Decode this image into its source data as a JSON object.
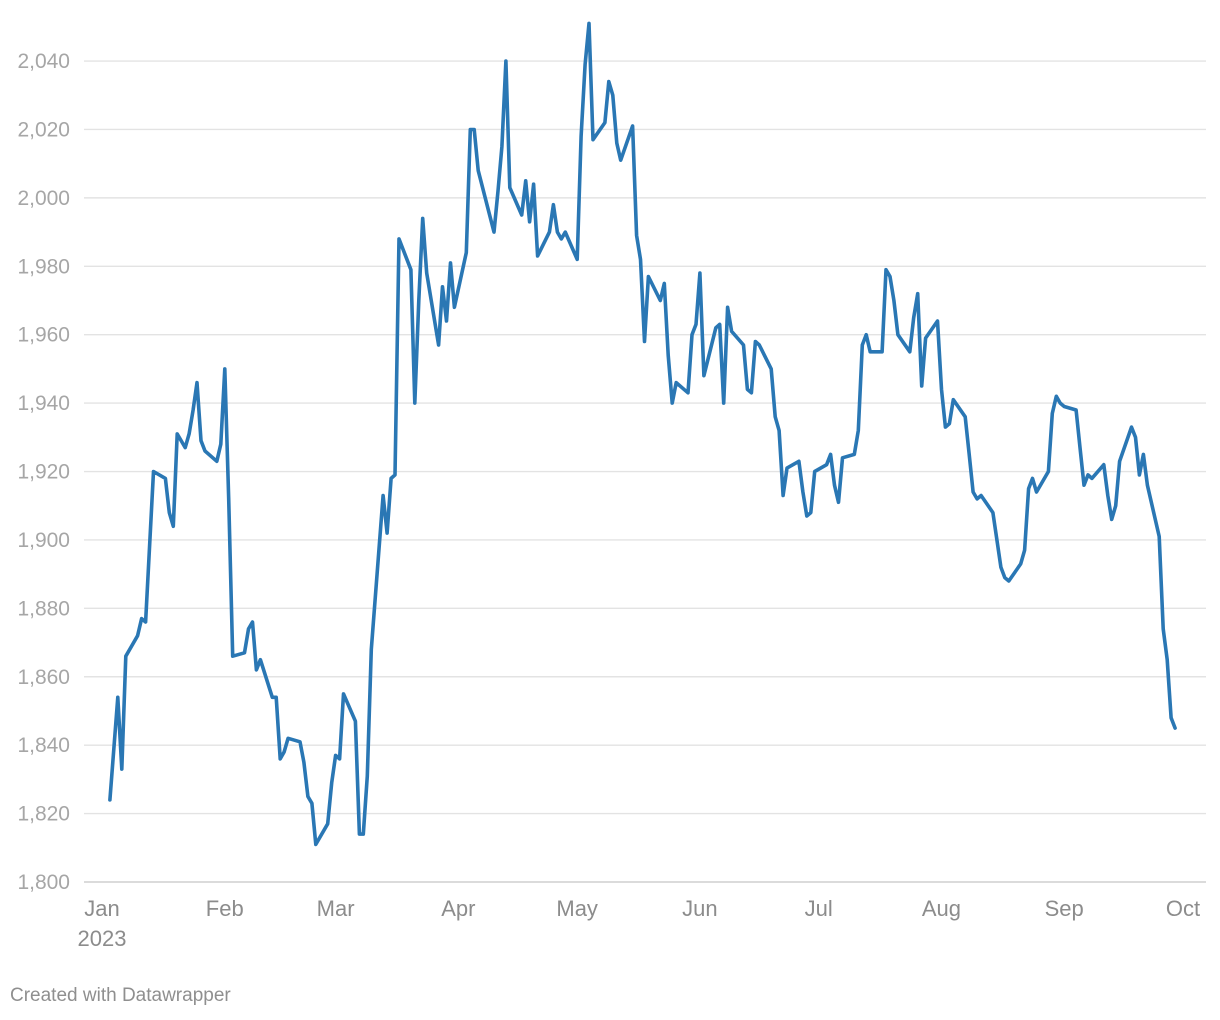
{
  "chart_data": {
    "type": "line",
    "title": "",
    "xlabel": "",
    "ylabel": "",
    "ylim": [
      1800,
      2052
    ],
    "yticks": [
      1800,
      1820,
      1840,
      1860,
      1880,
      1900,
      1920,
      1940,
      1960,
      1980,
      2000,
      2020,
      2040
    ],
    "ytick_labels": [
      "1,800",
      "1,820",
      "1,840",
      "1,860",
      "1,880",
      "1,900",
      "1,920",
      "1,940",
      "1,960",
      "1,980",
      "2,000",
      "2,020",
      "2,040"
    ],
    "xticks": [
      {
        "date": "2023-01-01",
        "label": "Jan",
        "sublabel": "2023"
      },
      {
        "date": "2023-02-01",
        "label": "Feb"
      },
      {
        "date": "2023-03-01",
        "label": "Mar"
      },
      {
        "date": "2023-04-01",
        "label": "Apr"
      },
      {
        "date": "2023-05-01",
        "label": "May"
      },
      {
        "date": "2023-06-01",
        "label": "Jun"
      },
      {
        "date": "2023-07-01",
        "label": "Jul"
      },
      {
        "date": "2023-08-01",
        "label": "Aug"
      },
      {
        "date": "2023-09-01",
        "label": "Sep"
      },
      {
        "date": "2023-10-01",
        "label": "Oct"
      }
    ],
    "xlim": [
      "2023-01-01",
      "2023-10-01"
    ],
    "grid": true,
    "legend": "none",
    "color": "#2a77b4",
    "series": [
      {
        "x": [
          "2023-01-03",
          "2023-01-05",
          "2023-01-06",
          "2023-01-07",
          "2023-01-10",
          "2023-01-11",
          "2023-01-12",
          "2023-01-14",
          "2023-01-17",
          "2023-01-18",
          "2023-01-19",
          "2023-01-20",
          "2023-01-22",
          "2023-01-23",
          "2023-01-24",
          "2023-01-25",
          "2023-01-26",
          "2023-01-27",
          "2023-01-30",
          "2023-01-31",
          "2023-02-01",
          "2023-02-02",
          "2023-02-03",
          "2023-02-06",
          "2023-02-07",
          "2023-02-08",
          "2023-02-09",
          "2023-02-10",
          "2023-02-13",
          "2023-02-14",
          "2023-02-15",
          "2023-02-16",
          "2023-02-17",
          "2023-02-20",
          "2023-02-21",
          "2023-02-22",
          "2023-02-23",
          "2023-02-24",
          "2023-02-27",
          "2023-02-28",
          "2023-03-01",
          "2023-03-02",
          "2023-03-03",
          "2023-03-06",
          "2023-03-07",
          "2023-03-08",
          "2023-03-09",
          "2023-03-10",
          "2023-03-13",
          "2023-03-14",
          "2023-03-15",
          "2023-03-16",
          "2023-03-17",
          "2023-03-20",
          "2023-03-21",
          "2023-03-22",
          "2023-03-23",
          "2023-03-24",
          "2023-03-27",
          "2023-03-28",
          "2023-03-29",
          "2023-03-30",
          "2023-03-31",
          "2023-04-03",
          "2023-04-04",
          "2023-04-05",
          "2023-04-06",
          "2023-04-10",
          "2023-04-11",
          "2023-04-12",
          "2023-04-13",
          "2023-04-14",
          "2023-04-17",
          "2023-04-18",
          "2023-04-19",
          "2023-04-20",
          "2023-04-21",
          "2023-04-24",
          "2023-04-25",
          "2023-04-26",
          "2023-04-27",
          "2023-04-28",
          "2023-05-01",
          "2023-05-02",
          "2023-05-03",
          "2023-05-04",
          "2023-05-05",
          "2023-05-08",
          "2023-05-09",
          "2023-05-10",
          "2023-05-11",
          "2023-05-12",
          "2023-05-15",
          "2023-05-16",
          "2023-05-17",
          "2023-05-18",
          "2023-05-19",
          "2023-05-22",
          "2023-05-23",
          "2023-05-24",
          "2023-05-25",
          "2023-05-26",
          "2023-05-29",
          "2023-05-30",
          "2023-05-31",
          "2023-06-01",
          "2023-06-02",
          "2023-06-05",
          "2023-06-06",
          "2023-06-07",
          "2023-06-08",
          "2023-06-09",
          "2023-06-12",
          "2023-06-13",
          "2023-06-14",
          "2023-06-15",
          "2023-06-16",
          "2023-06-19",
          "2023-06-20",
          "2023-06-21",
          "2023-06-22",
          "2023-06-23",
          "2023-06-26",
          "2023-06-27",
          "2023-06-28",
          "2023-06-29",
          "2023-06-30",
          "2023-07-03",
          "2023-07-04",
          "2023-07-05",
          "2023-07-06",
          "2023-07-07",
          "2023-07-10",
          "2023-07-11",
          "2023-07-12",
          "2023-07-13",
          "2023-07-14",
          "2023-07-17",
          "2023-07-18",
          "2023-07-19",
          "2023-07-20",
          "2023-07-21",
          "2023-07-24",
          "2023-07-25",
          "2023-07-26",
          "2023-07-27",
          "2023-07-28",
          "2023-07-31",
          "2023-08-01",
          "2023-08-02",
          "2023-08-03",
          "2023-08-04",
          "2023-08-07",
          "2023-08-08",
          "2023-08-09",
          "2023-08-10",
          "2023-08-11",
          "2023-08-14",
          "2023-08-15",
          "2023-08-16",
          "2023-08-17",
          "2023-08-18",
          "2023-08-21",
          "2023-08-22",
          "2023-08-23",
          "2023-08-24",
          "2023-08-25",
          "2023-08-28",
          "2023-08-29",
          "2023-08-30",
          "2023-08-31",
          "2023-09-01",
          "2023-09-04",
          "2023-09-05",
          "2023-09-06",
          "2023-09-07",
          "2023-09-08",
          "2023-09-11",
          "2023-09-12",
          "2023-09-13",
          "2023-09-14",
          "2023-09-15",
          "2023-09-18",
          "2023-09-19",
          "2023-09-20",
          "2023-09-21",
          "2023-09-22",
          "2023-09-25",
          "2023-09-26",
          "2023-09-27",
          "2023-09-28",
          "2023-09-29"
        ],
        "values": [
          1824,
          1854,
          1833,
          1866,
          1872,
          1877,
          1876,
          1920,
          1918,
          1908,
          1904,
          1931,
          1927,
          1931,
          1938,
          1946,
          1929,
          1926,
          1923,
          1928,
          1950,
          1912,
          1866,
          1867,
          1874,
          1876,
          1862,
          1865,
          1854,
          1854,
          1836,
          1838,
          1842,
          1841,
          1835,
          1825,
          1823,
          1811,
          1817,
          1829,
          1837,
          1836,
          1855,
          1847,
          1814,
          1814,
          1831,
          1868,
          1913,
          1902,
          1918,
          1919,
          1988,
          1979,
          1940,
          1970,
          1994,
          1978,
          1957,
          1974,
          1964,
          1981,
          1968,
          1984,
          2020,
          2020,
          2008,
          1990,
          2002,
          2015,
          2040,
          2003,
          1995,
          2005,
          1993,
          2004,
          1983,
          1990,
          1998,
          1990,
          1988,
          1990,
          1982,
          2018,
          2039,
          2051,
          2017,
          2022,
          2034,
          2030,
          2016,
          2011,
          2021,
          1989,
          1982,
          1958,
          1977,
          1970,
          1975,
          1954,
          1940,
          1946,
          1943,
          1960,
          1963,
          1978,
          1948,
          1962,
          1963,
          1940,
          1968,
          1961,
          1957,
          1944,
          1943,
          1958,
          1957,
          1950,
          1936,
          1932,
          1913,
          1921,
          1923,
          1914,
          1907,
          1908,
          1920,
          1922,
          1925,
          1916,
          1911,
          1924,
          1925,
          1932,
          1957,
          1960,
          1955,
          1955,
          1979,
          1977,
          1970,
          1960,
          1955,
          1965,
          1972,
          1945,
          1959,
          1964,
          1944,
          1933,
          1934,
          1941,
          1936,
          1925,
          1914,
          1912,
          1913,
          1908,
          1900,
          1892,
          1889,
          1888,
          1893,
          1897,
          1915,
          1918,
          1914,
          1920,
          1937,
          1942,
          1940,
          1939,
          1938,
          1927,
          1916,
          1919,
          1918,
          1922,
          1913,
          1906,
          1910,
          1923,
          1933,
          1930,
          1919,
          1925,
          1916,
          1901,
          1874,
          1865,
          1848,
          1845
        ]
      }
    ]
  },
  "footer": {
    "credit": "Created with Datawrapper"
  }
}
